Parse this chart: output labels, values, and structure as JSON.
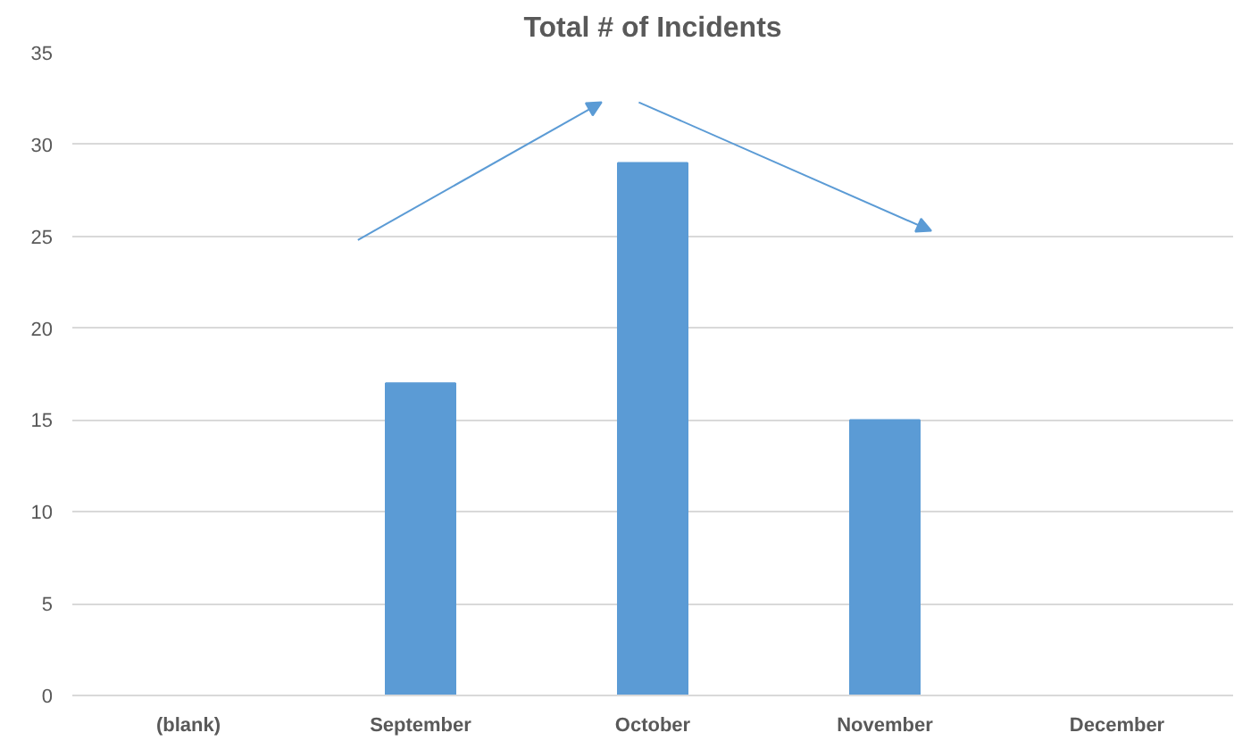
{
  "chart_data": {
    "type": "bar",
    "title": "Total # of Incidents",
    "categories": [
      "(blank)",
      "September",
      "October",
      "November",
      "December"
    ],
    "values": [
      null,
      17,
      29,
      15,
      null
    ],
    "color": "#5b9bd5",
    "ylim": [
      0,
      35
    ],
    "yticks": [
      0,
      5,
      10,
      15,
      20,
      25,
      30,
      35
    ],
    "grid": "y"
  }
}
